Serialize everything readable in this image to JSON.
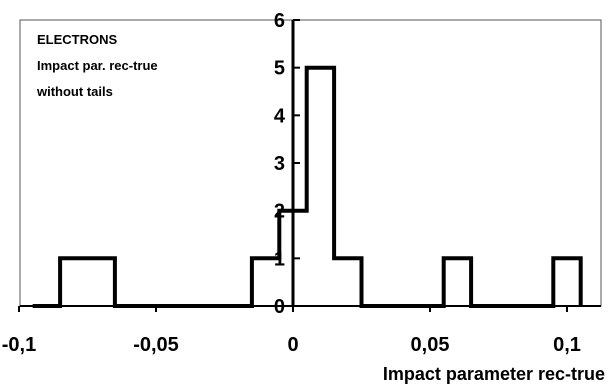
{
  "chart_data": {
    "type": "line",
    "style": "step-histogram",
    "title": "",
    "annotations": [
      "ELECTRONS",
      "Impact par. rec-true",
      "without tails"
    ],
    "xlabel": "Impact parameter rec-true",
    "ylabel": "",
    "xlim": [
      -0.1,
      0.11
    ],
    "ylim": [
      0,
      6
    ],
    "x_ticks": [
      -0.1,
      -0.05,
      0,
      0.05,
      0.1
    ],
    "x_tick_labels": [
      "-0,1",
      "-0,05",
      "0",
      "0,05",
      "0,1"
    ],
    "y_ticks": [
      0,
      1,
      2,
      3,
      4,
      5,
      6
    ],
    "y_tick_labels": [
      "0",
      "1",
      "2",
      "3",
      "4",
      "5",
      "6"
    ],
    "grid": false,
    "legend": "none",
    "series": [
      {
        "x": [
          -0.095,
          -0.085,
          -0.085,
          -0.065,
          -0.065,
          -0.015,
          -0.015,
          -0.005,
          -0.005,
          0.005,
          0.005,
          0.015,
          0.015,
          0.025,
          0.025,
          0.055,
          0.055,
          0.065,
          0.065,
          0.095,
          0.095,
          0.105,
          0.105
        ],
        "y": [
          0,
          0,
          1,
          1,
          0,
          0,
          1,
          1,
          2,
          2,
          5,
          5,
          1,
          1,
          0,
          0,
          1,
          1,
          0,
          0,
          1,
          1,
          0
        ]
      }
    ]
  }
}
